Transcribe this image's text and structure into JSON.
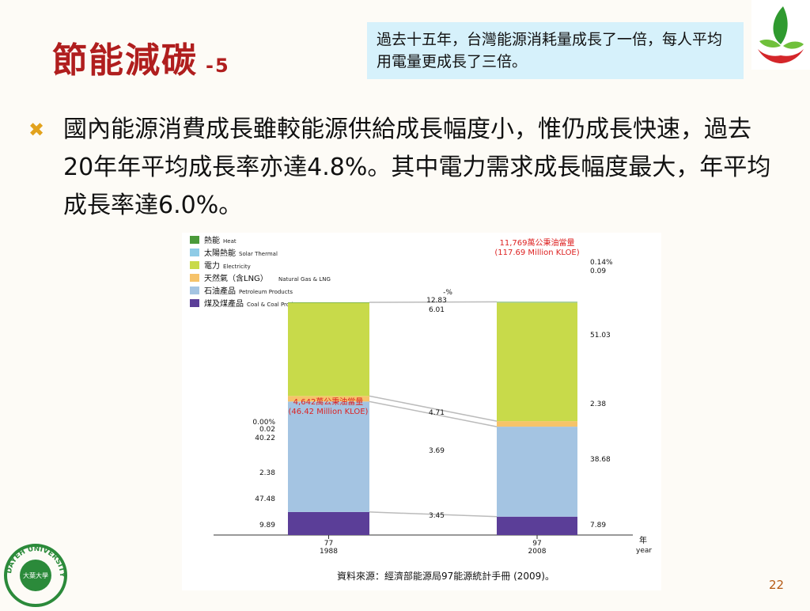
{
  "slide": {
    "title": "節能減碳",
    "title_suffix": "-5",
    "note": "過去十五年，台灣能源消耗量成長了一倍，每人平均用電量更成長了三倍。",
    "bullet": "國內能源消費成長雖較能源供給成長幅度小，惟仍成長快速，過去20年年平均成長率亦達4.8%。其中電力需求成長幅度最大，年平均成長率達6.0%。",
    "page_number": "22",
    "seal_text": "DAYEH UNIVERSITY",
    "seal_center": "大葉大學"
  },
  "chart_data": {
    "type": "bar",
    "stacked": true,
    "categories": [
      "77\n1988",
      "97\n2008"
    ],
    "category_lines": [
      [
        "77",
        "1988"
      ],
      [
        "97",
        "2008"
      ]
    ],
    "x_unit_lines": [
      "年",
      "year"
    ],
    "totals": [
      {
        "line1": "4,642萬公秉油當量",
        "line2": "(46.42 Million KLOE)",
        "value": 46.42
      },
      {
        "line1": "11,769萬公秉油當量",
        "line2": "(117.69 Million KLOE)",
        "value": 117.69
      }
    ],
    "series": [
      {
        "name": "煤及煤產品",
        "name_en": "Coal & Coal Products",
        "color": "#5b3e98",
        "values": [
          9.89,
          7.89
        ]
      },
      {
        "name": "石油產品",
        "name_en": "Petroleum Products",
        "color": "#a4c4e2",
        "values": [
          47.48,
          38.68
        ]
      },
      {
        "name": "天然氣（含LNG）",
        "name_en": "Natural Gas & LNG",
        "color": "#f6c36a",
        "values": [
          2.38,
          2.38
        ]
      },
      {
        "name": "電力",
        "name_en": "Electricity",
        "color": "#c8da4a",
        "values": [
          40.22,
          51.03
        ]
      },
      {
        "name": "太陽熱能",
        "name_en": "Solar Thermal",
        "color": "#8ecbe6",
        "values": [
          0.02,
          0.09
        ]
      },
      {
        "name": "熱能",
        "name_en": "Heat",
        "color": "#4a9a3a",
        "values": [
          0.0,
          0.14
        ]
      }
    ],
    "label_texts": [
      [
        "9.89",
        "7.89"
      ],
      [
        "47.48",
        "38.68"
      ],
      [
        "2.38",
        "2.38"
      ],
      [
        "40.22",
        "51.03"
      ],
      [
        "0.02",
        "0.09"
      ],
      [
        "0.00%",
        "0.14%"
      ]
    ],
    "growth_header": "-%",
    "growth_rates": [
      "3.45",
      "3.69",
      "4.71",
      "6.01",
      "12.83"
    ],
    "source": "資料來源：經濟部能源局97能源統計手冊 (2009)。",
    "legend_position": "top-left",
    "grid": false
  }
}
